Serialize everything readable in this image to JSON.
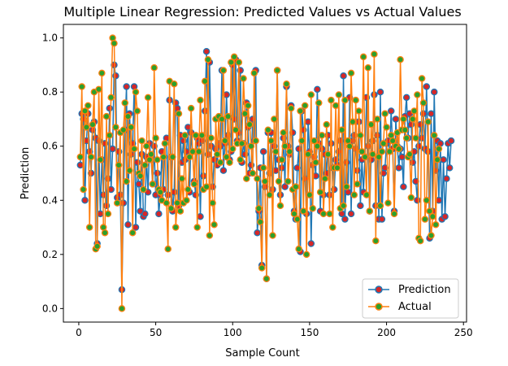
{
  "chart_data": {
    "type": "line",
    "title": "Multiple Linear Regression: Predicted Values vs Actual Values",
    "xlabel": "Sample Count",
    "ylabel": "Prediction",
    "xlim": [
      -10,
      252
    ],
    "ylim": [
      -0.05,
      1.05
    ],
    "xticks": [
      0,
      50,
      100,
      150,
      200,
      250
    ],
    "yticks": [
      0.0,
      0.2,
      0.4,
      0.6,
      0.8,
      1.0
    ],
    "ytick_labels": [
      "0.0",
      "0.2",
      "0.4",
      "0.6",
      "0.8",
      "1.0"
    ],
    "grid": false,
    "legend_position": "lower-right",
    "colors": {
      "prediction_line": "#1f77b4",
      "prediction_marker": "#d62728",
      "actual_line": "#ff7f0e",
      "actual_marker": "#2ca02c"
    },
    "series": [
      {
        "name": "Prediction",
        "values": [
          0.53,
          0.72,
          0.7,
          0.4,
          0.62,
          0.72,
          0.58,
          0.5,
          0.66,
          0.69,
          0.63,
          0.24,
          0.62,
          0.35,
          0.55,
          0.42,
          0.61,
          0.38,
          0.48,
          0.74,
          0.44,
          0.59,
          0.9,
          0.86,
          0.41,
          0.58,
          0.42,
          0.07,
          0.39,
          0.66,
          0.82,
          0.31,
          0.72,
          0.57,
          0.61,
          0.82,
          0.3,
          0.54,
          0.46,
          0.36,
          0.57,
          0.34,
          0.35,
          0.56,
          0.43,
          0.61,
          0.55,
          0.46,
          0.6,
          0.42,
          0.5,
          0.35,
          0.42,
          0.58,
          0.44,
          0.61,
          0.63,
          0.42,
          0.77,
          0.56,
          0.36,
          0.43,
          0.76,
          0.74,
          0.38,
          0.64,
          0.54,
          0.62,
          0.55,
          0.58,
          0.67,
          0.43,
          0.65,
          0.58,
          0.47,
          0.42,
          0.63,
          0.61,
          0.34,
          0.62,
          0.49,
          0.73,
          0.95,
          0.57,
          0.91,
          0.6,
          0.45,
          0.55,
          0.59,
          0.53,
          0.61,
          0.6,
          0.88,
          0.51,
          0.61,
          0.79,
          0.64,
          0.55,
          0.58,
          0.9,
          0.7,
          0.92,
          0.62,
          0.65,
          0.88,
          0.54,
          0.61,
          0.57,
          0.76,
          0.67,
          0.5,
          0.53,
          0.7,
          0.62,
          0.88,
          0.28,
          0.36,
          0.52,
          0.16,
          0.58,
          0.45,
          0.11,
          0.65,
          0.5,
          0.65,
          0.44,
          0.6,
          0.51,
          0.88,
          0.55,
          0.42,
          0.52,
          0.63,
          0.45,
          0.82,
          0.6,
          0.57,
          0.75,
          0.65,
          0.36,
          0.33,
          0.52,
          0.59,
          0.21,
          0.73,
          0.66,
          0.48,
          0.35,
          0.69,
          0.58,
          0.24,
          0.53,
          0.56,
          0.49,
          0.81,
          0.61,
          0.36,
          0.59,
          0.42,
          0.57,
          0.5,
          0.64,
          0.42,
          0.61,
          0.52,
          0.44,
          0.55,
          0.53,
          0.58,
          0.62,
          0.35,
          0.86,
          0.33,
          0.54,
          0.43,
          0.78,
          0.35,
          0.62,
          0.64,
          0.59,
          0.51,
          0.69,
          0.38,
          0.55,
          0.43,
          0.56,
          0.78,
          0.6,
          0.36,
          0.55,
          0.62,
          0.79,
          0.38,
          0.64,
          0.33,
          0.8,
          0.33,
          0.5,
          0.52,
          0.61,
          0.62,
          0.58,
          0.73,
          0.59,
          0.36,
          0.7,
          0.6,
          0.52,
          0.59,
          0.56,
          0.45,
          0.71,
          0.78,
          0.63,
          0.72,
          0.68,
          0.54,
          0.58,
          0.47,
          0.4,
          0.6,
          0.68,
          0.63,
          0.72,
          0.59,
          0.82,
          0.58,
          0.26,
          0.72,
          0.36,
          0.8,
          0.51,
          0.62,
          0.4,
          0.61,
          0.33,
          0.55,
          0.34,
          0.48,
          0.61,
          0.52,
          0.62
        ]
      },
      {
        "name": "Actual",
        "values": [
          0.56,
          0.82,
          0.44,
          0.73,
          0.67,
          0.75,
          0.3,
          0.56,
          0.68,
          0.8,
          0.22,
          0.23,
          0.81,
          0.55,
          0.87,
          0.3,
          0.28,
          0.71,
          0.35,
          0.64,
          0.78,
          1.0,
          0.98,
          0.67,
          0.39,
          0.53,
          0.65,
          0.0,
          0.66,
          0.76,
          0.47,
          0.71,
          0.51,
          0.67,
          0.28,
          0.59,
          0.8,
          0.73,
          0.5,
          0.49,
          0.62,
          0.44,
          0.53,
          0.6,
          0.78,
          0.55,
          0.57,
          0.46,
          0.89,
          0.63,
          0.55,
          0.44,
          0.43,
          0.4,
          0.56,
          0.61,
          0.39,
          0.22,
          0.84,
          0.37,
          0.56,
          0.83,
          0.3,
          0.39,
          0.72,
          0.36,
          0.48,
          0.39,
          0.64,
          0.4,
          0.44,
          0.56,
          0.74,
          0.58,
          0.46,
          0.64,
          0.3,
          0.58,
          0.77,
          0.64,
          0.44,
          0.84,
          0.45,
          0.92,
          0.27,
          0.63,
          0.39,
          0.31,
          0.7,
          0.57,
          0.71,
          0.54,
          0.7,
          0.88,
          0.62,
          0.56,
          0.71,
          0.54,
          0.91,
          0.59,
          0.93,
          0.66,
          0.61,
          0.91,
          0.55,
          0.61,
          0.85,
          0.72,
          0.48,
          0.75,
          0.68,
          0.6,
          0.5,
          0.87,
          0.62,
          0.48,
          0.37,
          0.32,
          0.15,
          0.52,
          0.47,
          0.11,
          0.66,
          0.42,
          0.62,
          0.27,
          0.7,
          0.58,
          0.88,
          0.47,
          0.38,
          0.55,
          0.65,
          0.6,
          0.83,
          0.47,
          0.58,
          0.74,
          0.44,
          0.35,
          0.45,
          0.33,
          0.22,
          0.73,
          0.62,
          0.36,
          0.75,
          0.2,
          0.57,
          0.42,
          0.79,
          0.37,
          0.62,
          0.54,
          0.6,
          0.76,
          0.43,
          0.64,
          0.35,
          0.48,
          0.68,
          0.57,
          0.35,
          0.77,
          0.3,
          0.52,
          0.75,
          0.52,
          0.79,
          0.37,
          0.66,
          0.38,
          0.77,
          0.45,
          0.62,
          0.6,
          0.87,
          0.69,
          0.42,
          0.77,
          0.46,
          0.73,
          0.64,
          0.58,
          0.93,
          0.56,
          0.42,
          0.89,
          0.36,
          0.68,
          0.57,
          0.94,
          0.25,
          0.7,
          0.56,
          0.38,
          0.58,
          0.61,
          0.72,
          0.67,
          0.39,
          0.58,
          0.64,
          0.62,
          0.35,
          0.6,
          0.65,
          0.59,
          0.92,
          0.66,
          0.7,
          0.66,
          0.63,
          0.56,
          0.57,
          0.41,
          0.7,
          0.73,
          0.63,
          0.79,
          0.26,
          0.25,
          0.85,
          0.76,
          0.33,
          0.4,
          0.69,
          0.36,
          0.27,
          0.34,
          0.64,
          0.31,
          0.55,
          0.59
        ]
      }
    ]
  }
}
